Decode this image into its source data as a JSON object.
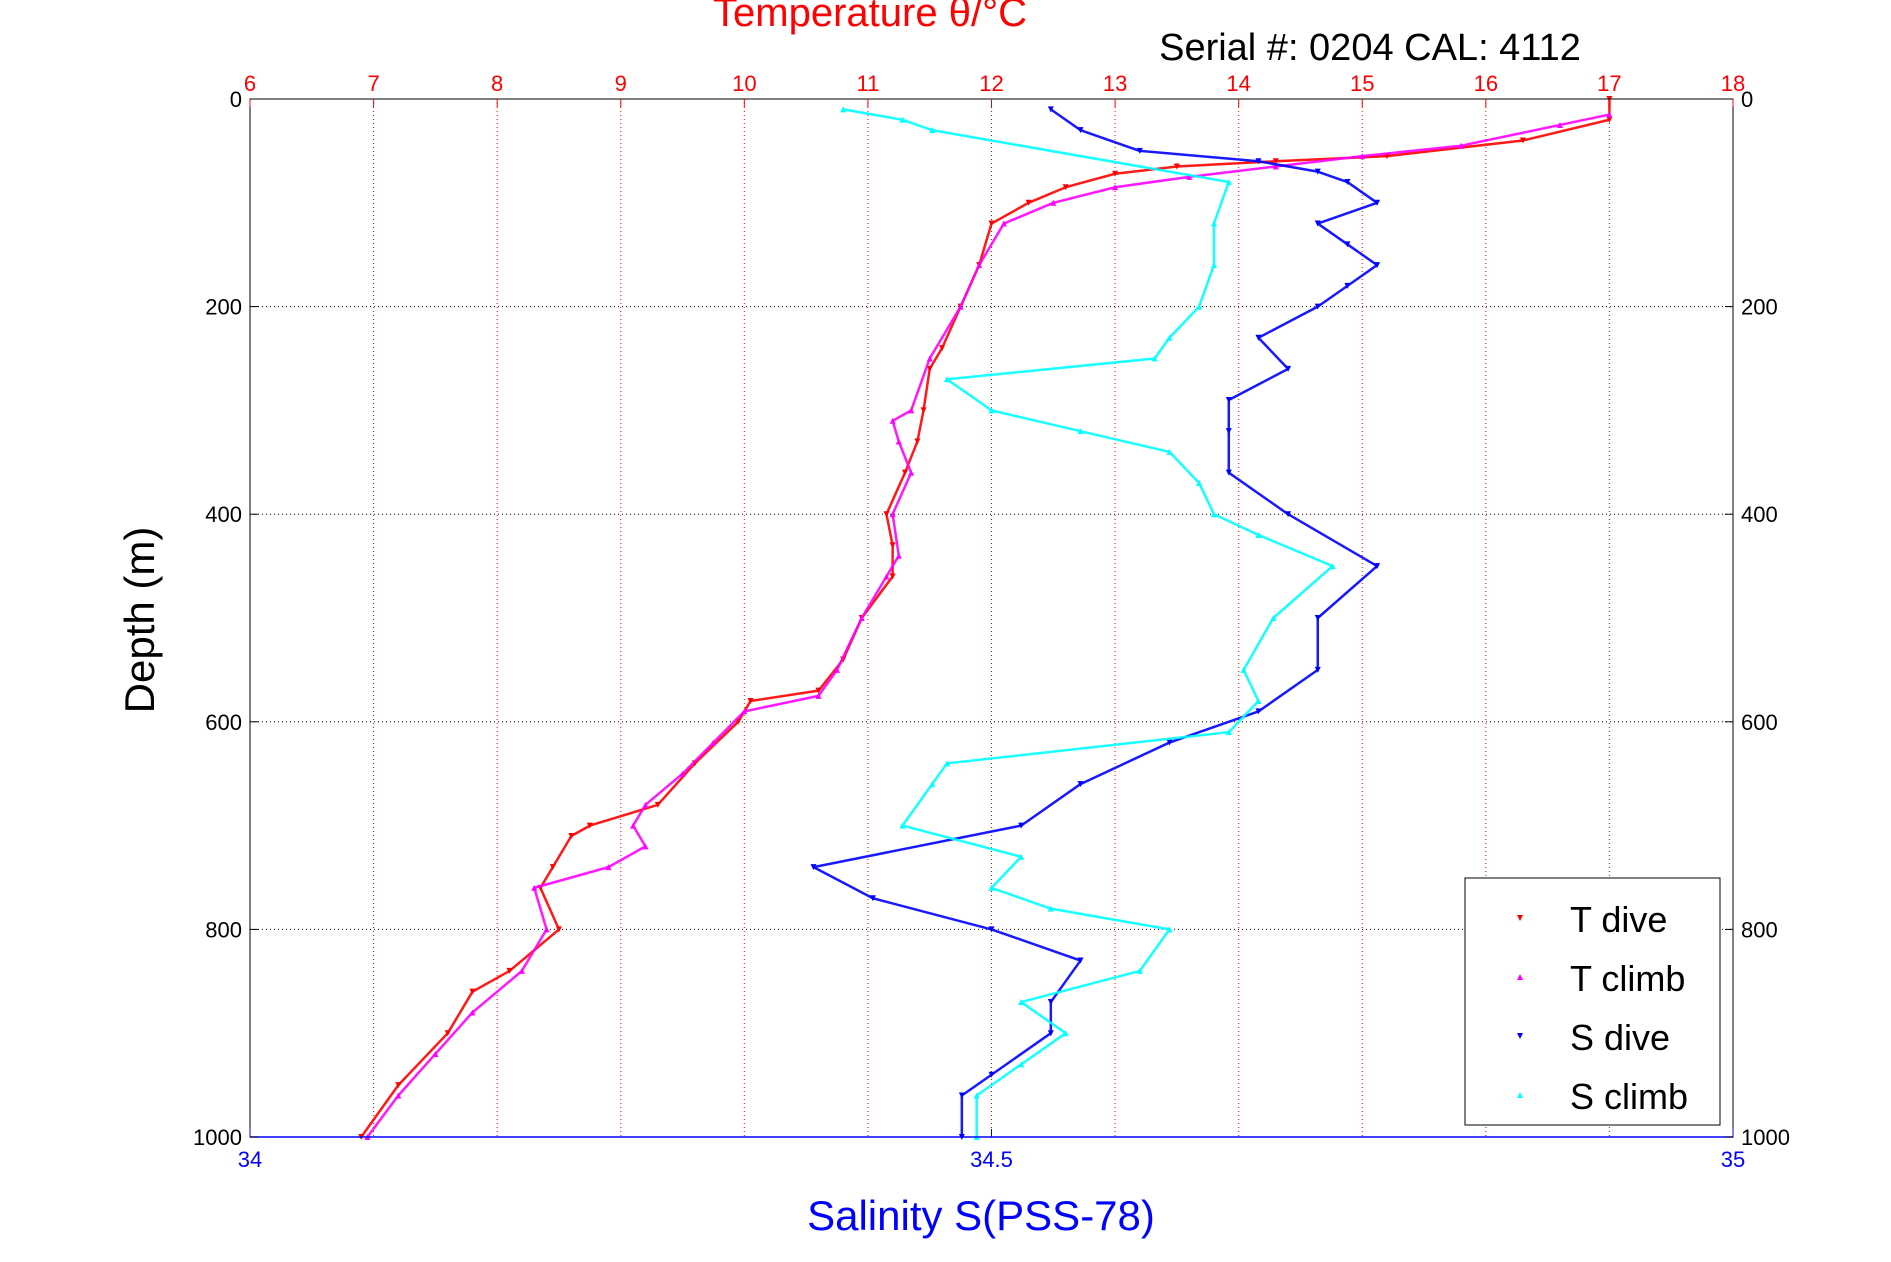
{
  "chart_data": {
    "type": "scatter",
    "title": "Temperature θ/°C",
    "subtitle": "Serial #: 0204  CAL: 4112",
    "xlabel_bottom": "Salinity S(PSS-78)",
    "xlabel_top": "",
    "ylabel": "Depth (m)",
    "x_bottom": {
      "range": [
        34,
        35
      ],
      "ticks": [
        34,
        34.5,
        35
      ],
      "color": "#0000ff"
    },
    "x_top": {
      "range": [
        6,
        18
      ],
      "ticks": [
        6,
        7,
        8,
        9,
        10,
        11,
        12,
        13,
        14,
        15,
        16,
        17,
        18
      ],
      "color": "#ff0000"
    },
    "y": {
      "range": [
        0,
        1000
      ],
      "ticks": [
        0,
        200,
        400,
        600,
        800,
        1000
      ],
      "reversed": true
    },
    "grid": {
      "x": true,
      "y": true
    },
    "legend": {
      "placement": "bottom-right"
    },
    "colors": {
      "t_dive": "#ff0000",
      "t_climb": "#ff00ff",
      "s_dive": "#0000ff",
      "s_climb": "#00ffff",
      "title": "#ff0000",
      "subtitle": "#000000"
    },
    "series": [
      {
        "name": "T dive",
        "axis": "top",
        "marker": "triangle-down",
        "color": "#ff0000",
        "depth_x": [
          [
            0,
            17.0
          ],
          [
            20,
            17.0
          ],
          [
            40,
            16.3
          ],
          [
            55,
            15.2
          ],
          [
            60,
            14.3
          ],
          [
            65,
            13.5
          ],
          [
            72,
            13.0
          ],
          [
            85,
            12.6
          ],
          [
            100,
            12.3
          ],
          [
            120,
            12.0
          ],
          [
            160,
            11.9
          ],
          [
            200,
            11.75
          ],
          [
            240,
            11.6
          ],
          [
            260,
            11.5
          ],
          [
            300,
            11.45
          ],
          [
            330,
            11.4
          ],
          [
            360,
            11.3
          ],
          [
            400,
            11.15
          ],
          [
            430,
            11.2
          ],
          [
            460,
            11.2
          ],
          [
            500,
            10.95
          ],
          [
            540,
            10.8
          ],
          [
            570,
            10.6
          ],
          [
            580,
            10.05
          ],
          [
            600,
            9.95
          ],
          [
            640,
            9.6
          ],
          [
            680,
            9.3
          ],
          [
            700,
            8.75
          ],
          [
            710,
            8.6
          ],
          [
            740,
            8.45
          ],
          [
            760,
            8.35
          ],
          [
            800,
            8.5
          ],
          [
            840,
            8.1
          ],
          [
            860,
            7.8
          ],
          [
            900,
            7.6
          ],
          [
            950,
            7.2
          ],
          [
            1000,
            6.9
          ]
        ]
      },
      {
        "name": "T climb",
        "axis": "top",
        "marker": "triangle-up",
        "color": "#ff00ff",
        "depth_x": [
          [
            15,
            17.0
          ],
          [
            25,
            16.6
          ],
          [
            45,
            15.8
          ],
          [
            55,
            15.0
          ],
          [
            65,
            14.3
          ],
          [
            75,
            13.6
          ],
          [
            85,
            13.0
          ],
          [
            100,
            12.5
          ],
          [
            120,
            12.1
          ],
          [
            160,
            11.9
          ],
          [
            200,
            11.75
          ],
          [
            250,
            11.5
          ],
          [
            300,
            11.35
          ],
          [
            310,
            11.2
          ],
          [
            330,
            11.25
          ],
          [
            360,
            11.35
          ],
          [
            400,
            11.2
          ],
          [
            440,
            11.25
          ],
          [
            460,
            11.15
          ],
          [
            500,
            10.95
          ],
          [
            550,
            10.75
          ],
          [
            575,
            10.6
          ],
          [
            590,
            10.0
          ],
          [
            620,
            9.75
          ],
          [
            650,
            9.5
          ],
          [
            680,
            9.2
          ],
          [
            700,
            9.1
          ],
          [
            720,
            9.2
          ],
          [
            740,
            8.9
          ],
          [
            760,
            8.3
          ],
          [
            800,
            8.4
          ],
          [
            840,
            8.2
          ],
          [
            880,
            7.8
          ],
          [
            920,
            7.5
          ],
          [
            960,
            7.2
          ],
          [
            1000,
            6.95
          ]
        ]
      },
      {
        "name": "S dive",
        "axis": "bottom",
        "marker": "triangle-down",
        "color": "#0000ff",
        "depth_x": [
          [
            10,
            34.54
          ],
          [
            30,
            34.56
          ],
          [
            50,
            34.6
          ],
          [
            60,
            34.68
          ],
          [
            70,
            34.72
          ],
          [
            80,
            34.74
          ],
          [
            100,
            34.76
          ],
          [
            120,
            34.72
          ],
          [
            140,
            34.74
          ],
          [
            160,
            34.76
          ],
          [
            180,
            34.74
          ],
          [
            200,
            34.72
          ],
          [
            230,
            34.68
          ],
          [
            260,
            34.7
          ],
          [
            290,
            34.66
          ],
          [
            320,
            34.66
          ],
          [
            360,
            34.66
          ],
          [
            400,
            34.7
          ],
          [
            450,
            34.76
          ],
          [
            500,
            34.72
          ],
          [
            550,
            34.72
          ],
          [
            590,
            34.68
          ],
          [
            620,
            34.62
          ],
          [
            660,
            34.56
          ],
          [
            700,
            34.52
          ],
          [
            740,
            34.38
          ],
          [
            770,
            34.42
          ],
          [
            800,
            34.5
          ],
          [
            830,
            34.56
          ],
          [
            870,
            34.54
          ],
          [
            900,
            34.54
          ],
          [
            940,
            34.5
          ],
          [
            960,
            34.48
          ],
          [
            1000,
            34.48
          ]
        ]
      },
      {
        "name": "S climb",
        "axis": "bottom",
        "marker": "triangle-up",
        "color": "#00ffff",
        "depth_x": [
          [
            10,
            34.4
          ],
          [
            20,
            34.44
          ],
          [
            30,
            34.46
          ],
          [
            80,
            34.66
          ],
          [
            120,
            34.65
          ],
          [
            160,
            34.65
          ],
          [
            200,
            34.64
          ],
          [
            230,
            34.62
          ],
          [
            250,
            34.61
          ],
          [
            270,
            34.47
          ],
          [
            300,
            34.5
          ],
          [
            320,
            34.56
          ],
          [
            340,
            34.62
          ],
          [
            370,
            34.64
          ],
          [
            400,
            34.65
          ],
          [
            420,
            34.68
          ],
          [
            450,
            34.73
          ],
          [
            500,
            34.69
          ],
          [
            550,
            34.67
          ],
          [
            580,
            34.68
          ],
          [
            610,
            34.66
          ],
          [
            640,
            34.47
          ],
          [
            660,
            34.46
          ],
          [
            700,
            34.44
          ],
          [
            730,
            34.52
          ],
          [
            760,
            34.5
          ],
          [
            780,
            34.54
          ],
          [
            800,
            34.62
          ],
          [
            840,
            34.6
          ],
          [
            870,
            34.52
          ],
          [
            900,
            34.55
          ],
          [
            930,
            34.52
          ],
          [
            960,
            34.49
          ],
          [
            1000,
            34.49
          ]
        ]
      }
    ]
  }
}
